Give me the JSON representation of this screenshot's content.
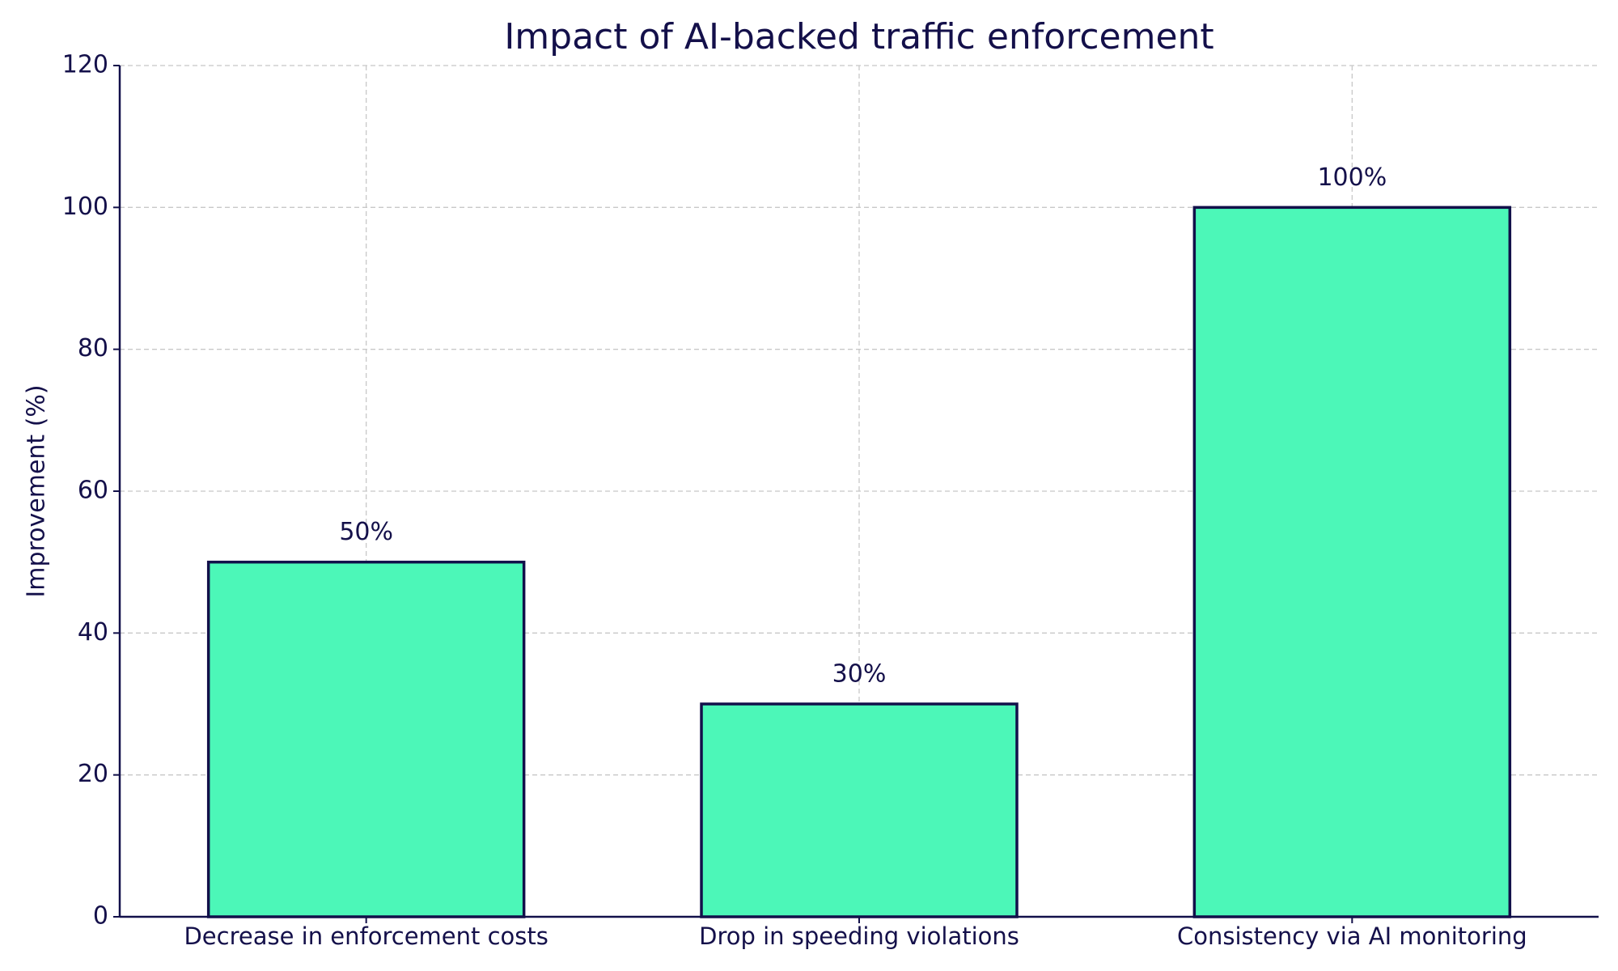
{
  "chart_data": {
    "type": "bar",
    "title": "Impact of AI-backed traffic enforcement",
    "y_label": "Improvement (%)",
    "categories": [
      "Decrease in enforcement costs",
      "Drop in speeding violations",
      "Consistency via AI monitoring"
    ],
    "values": [
      50,
      30,
      100
    ],
    "value_labels": [
      "50%",
      "30%",
      "100%"
    ],
    "color": "#4cf7b8",
    "edge_color": "#12104a",
    "ylim": [
      0,
      120
    ],
    "yticks": [
      0,
      20,
      40,
      60,
      80,
      100,
      120
    ],
    "grid": true
  }
}
